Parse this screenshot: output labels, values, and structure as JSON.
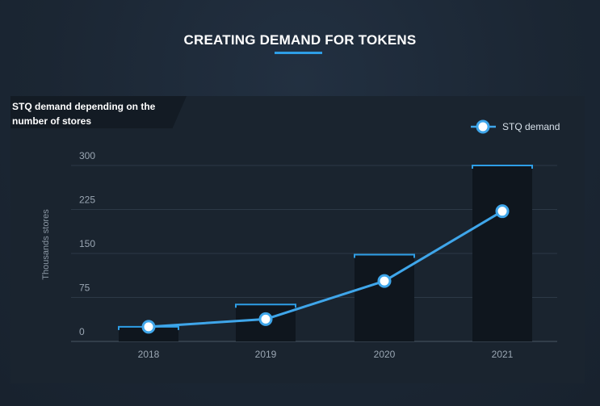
{
  "page": {
    "heading": "CREATING DEMAND FOR TOKENS"
  },
  "colors": {
    "accent": "#2e9ee6",
    "line": "#3fa6ea",
    "bar": "#0f161e",
    "panel": "#1a242f",
    "background": "#1b2633"
  },
  "chart_data": {
    "type": "bar",
    "title": "STQ demand depending on the number of stores",
    "categories": [
      "2018",
      "2019",
      "2020",
      "2021"
    ],
    "bars": {
      "values": [
        25,
        63,
        148,
        300
      ]
    },
    "series": [
      {
        "name": "STQ demand",
        "type": "line",
        "values": [
          25,
          38,
          103,
          222
        ]
      }
    ],
    "ylabel": "Thousands stores",
    "xlabel": "",
    "ylim": [
      0,
      300
    ],
    "yticks": [
      "0",
      "75",
      "150",
      "225",
      "300"
    ],
    "grid": true,
    "legend": "top-right"
  }
}
